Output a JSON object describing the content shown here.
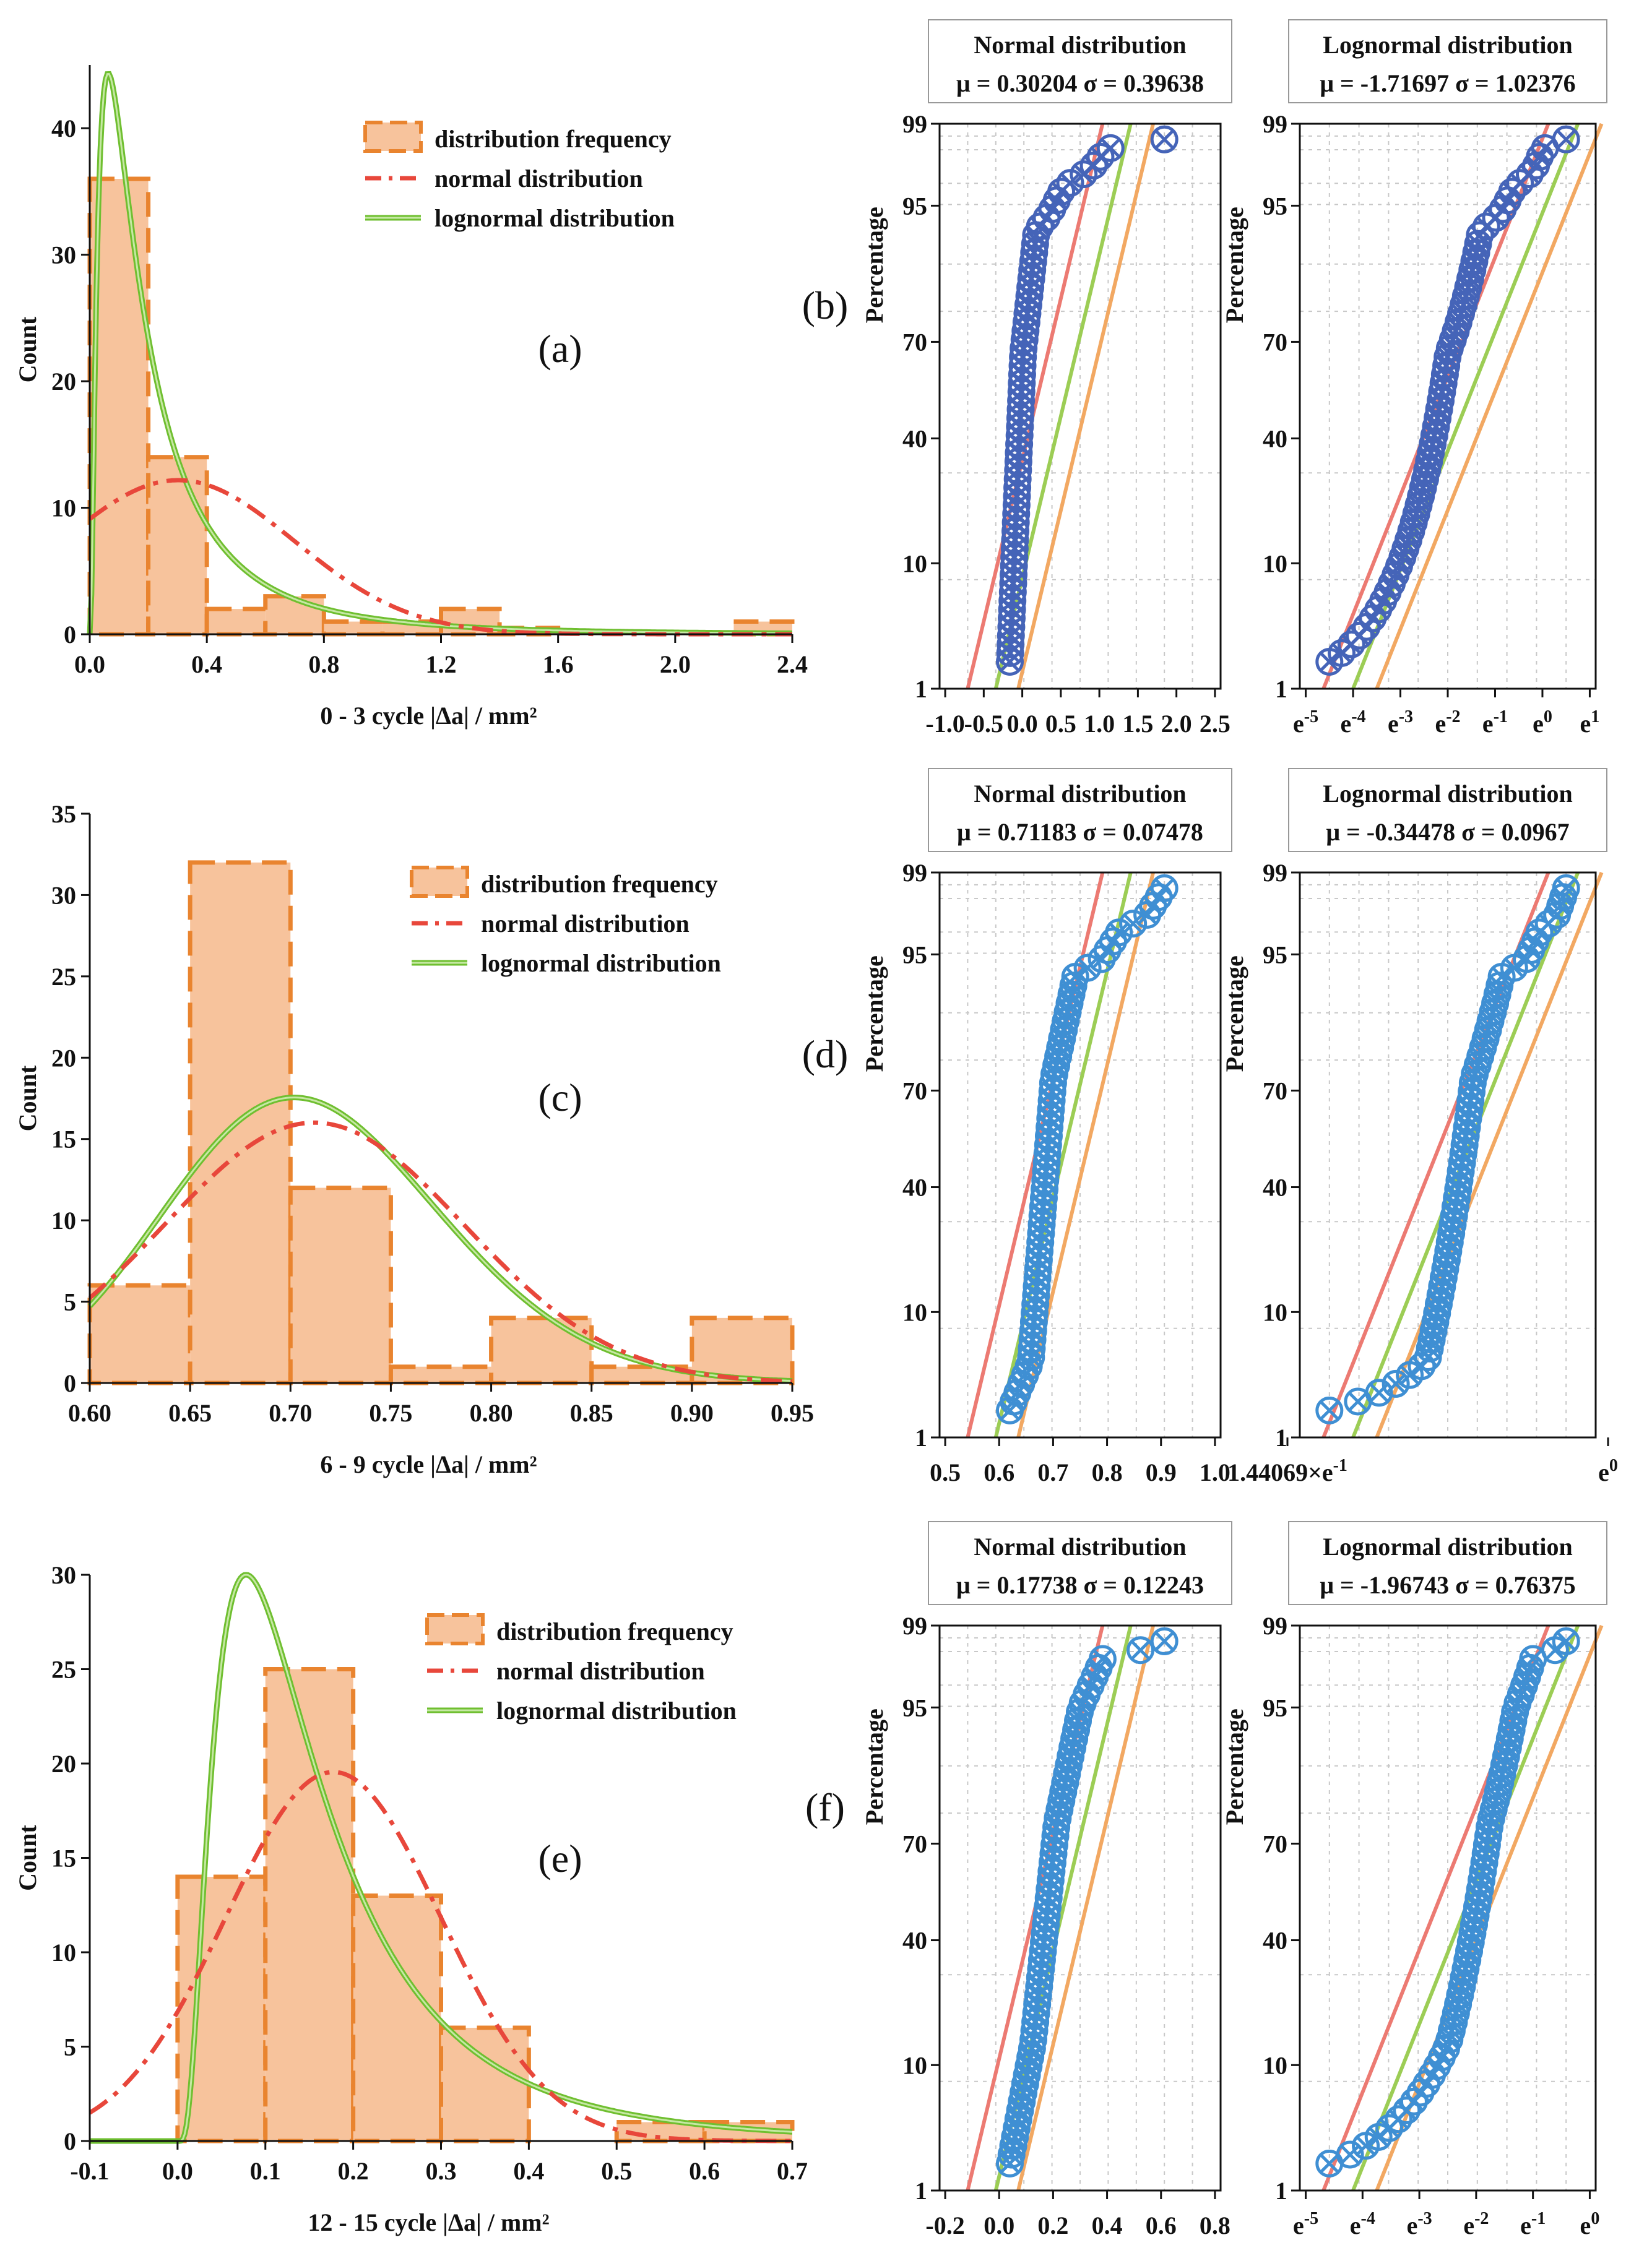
{
  "colors": {
    "bar_fill": "#f7c39c",
    "bar_edge": "#e9842f",
    "normal": "#e8473b",
    "lognormal_a": "#6fbf30",
    "lognormal_b": "#c6e8a4",
    "ref_red": "#ec7a72",
    "ref_green": "#9ccd55",
    "ref_orange": "#f2a862",
    "marker_b": "#4564b8",
    "marker_d": "#3f8fd3",
    "grid": "#c8c8c8"
  },
  "legend": {
    "frequency": "distribution frequency",
    "normal": "normal distribution",
    "lognormal": "lognormal distribution"
  },
  "chart_data": [
    {
      "id": "a",
      "type": "bar",
      "letter": "(a)",
      "xlabel": "0 - 3 cycle |Δa| / mm²",
      "ylabel": "Count",
      "xlim": [
        0,
        2.4
      ],
      "ylim": [
        0,
        45
      ],
      "xticks": [
        "0.0",
        "0.4",
        "0.8",
        "1.2",
        "1.6",
        "2.0",
        "2.4"
      ],
      "yticks": [
        "0",
        "10",
        "20",
        "30",
        "40"
      ],
      "bins": [
        [
          0.0,
          0.2,
          36
        ],
        [
          0.2,
          0.4,
          14
        ],
        [
          0.4,
          0.6,
          2
        ],
        [
          0.6,
          0.8,
          3
        ],
        [
          0.8,
          1.0,
          1
        ],
        [
          1.0,
          1.2,
          1
        ],
        [
          1.2,
          1.4,
          2
        ],
        [
          1.4,
          1.6,
          0.5
        ],
        [
          2.2,
          2.4,
          1
        ]
      ],
      "normal_fit": {
        "mu": 0.30204,
        "sigma": 0.39638
      },
      "lognormal_fit": {
        "mu": -1.71697,
        "sigma": 1.02376
      }
    },
    {
      "id": "c",
      "type": "bar",
      "letter": "(c)",
      "xlabel": "6 - 9 cycle |Δa| / mm²",
      "ylabel": "Count",
      "xlim": [
        0.6,
        0.95
      ],
      "ylim": [
        0,
        35
      ],
      "xticks": [
        "0.60",
        "0.65",
        "0.70",
        "0.75",
        "0.80",
        "0.85",
        "0.90",
        "0.95"
      ],
      "yticks": [
        "0",
        "5",
        "10",
        "15",
        "20",
        "25",
        "30",
        "35"
      ],
      "bins": [
        [
          0.6,
          0.65,
          6
        ],
        [
          0.65,
          0.7,
          32
        ],
        [
          0.7,
          0.75,
          12
        ],
        [
          0.75,
          0.8,
          1
        ],
        [
          0.8,
          0.85,
          4
        ],
        [
          0.85,
          0.9,
          1
        ],
        [
          0.9,
          0.95,
          4
        ]
      ],
      "normal_fit": {
        "mu": 0.71183,
        "sigma": 0.07478
      },
      "lognormal_fit": {
        "mu": -0.34478,
        "sigma": 0.0967
      }
    },
    {
      "id": "e",
      "type": "bar",
      "letter": "(e)",
      "xlabel": "12 - 15 cycle |Δa| / mm²",
      "ylabel": "Count",
      "xlim": [
        -0.1,
        0.7
      ],
      "ylim": [
        0,
        30
      ],
      "xticks": [
        "-0.1",
        "0.0",
        "0.1",
        "0.2",
        "0.3",
        "0.4",
        "0.5",
        "0.6",
        "0.7"
      ],
      "yticks": [
        "0",
        "5",
        "10",
        "15",
        "20",
        "25",
        "30"
      ],
      "bins": [
        [
          0.0,
          0.1,
          14
        ],
        [
          0.1,
          0.2,
          25
        ],
        [
          0.2,
          0.3,
          13
        ],
        [
          0.3,
          0.4,
          6
        ],
        [
          0.5,
          0.6,
          1
        ],
        [
          0.6,
          0.7,
          1
        ]
      ],
      "normal_fit": {
        "mu": 0.17738,
        "sigma": 0.12243
      },
      "lognormal_fit": {
        "mu": -1.96743,
        "sigma": 0.76375
      }
    },
    {
      "id": "b",
      "type": "scatter",
      "letter": "(b)",
      "title": "Normal distribution",
      "params": "μ = 0.30204   σ = 0.39638",
      "ylabel": "Percentage",
      "xlim": [
        -1.0,
        2.5
      ],
      "xticks": [
        "-1.0",
        "-0.5",
        "0.0",
        "0.5",
        "1.0",
        "1.5",
        "2.0",
        "2.5"
      ],
      "yticks": [
        "1",
        "10",
        "40",
        "70",
        "95",
        "99"
      ]
    },
    {
      "id": "b2",
      "type": "scatter",
      "title": "Lognormal distribution",
      "params": "μ = -1.71697   σ = 1.02376",
      "ylabel": "Percentage",
      "xticks": [
        "e-5",
        "e-4",
        "e-3",
        "e-2",
        "e-1",
        "e0",
        "e1"
      ],
      "yticks": [
        "1",
        "10",
        "40",
        "70",
        "95",
        "99"
      ]
    },
    {
      "id": "d",
      "type": "scatter",
      "letter": "(d)",
      "title": "Normal distribution",
      "params": "μ = 0.71183   σ = 0.07478",
      "ylabel": "Percentage",
      "xticks": [
        "0.5",
        "0.6",
        "0.7",
        "0.8",
        "0.9",
        "1.0"
      ],
      "yticks": [
        "1",
        "10",
        "40",
        "70",
        "95",
        "99"
      ]
    },
    {
      "id": "d2",
      "type": "scatter",
      "title": "Lognormal distribution",
      "params": "μ = -0.34478   σ = 0.0967",
      "ylabel": "Percentage",
      "xticks": [
        "1.44069×e-1",
        "e0"
      ],
      "yticks": [
        "1",
        "10",
        "40",
        "70",
        "95",
        "99"
      ]
    },
    {
      "id": "f",
      "type": "scatter",
      "letter": "(f)",
      "title": "Normal distribution",
      "params": "μ = 0.17738   σ = 0.12243",
      "ylabel": "Percentage",
      "xticks": [
        "-0.2",
        "0.0",
        "0.2",
        "0.4",
        "0.6",
        "0.8"
      ],
      "yticks": [
        "1",
        "10",
        "40",
        "70",
        "95",
        "99"
      ]
    },
    {
      "id": "f2",
      "type": "scatter",
      "title": "Lognormal distribution",
      "params": "μ = -1.96743   σ = 0.76375",
      "ylabel": "Percentage",
      "xticks": [
        "e-5",
        "e-4",
        "e-3",
        "e-2",
        "e-1",
        "e0"
      ],
      "yticks": [
        "1",
        "10",
        "40",
        "70",
        "95",
        "99"
      ]
    }
  ]
}
